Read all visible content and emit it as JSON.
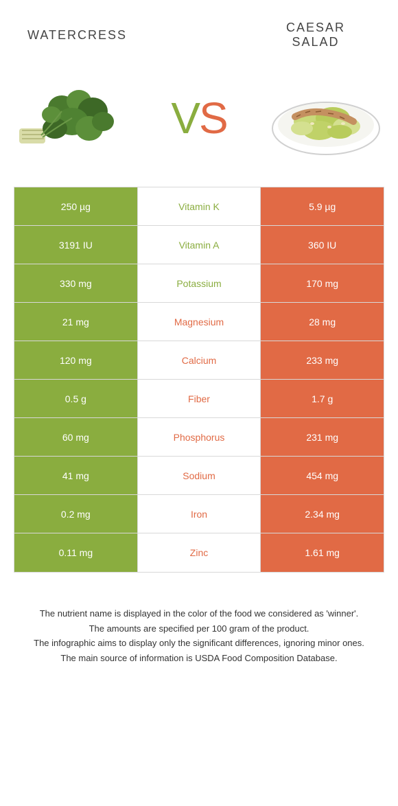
{
  "colors": {
    "green": "#8aad3f",
    "orange": "#e16a45",
    "border": "#d8d8d8",
    "bg": "#ffffff",
    "text": "#333333"
  },
  "header": {
    "left_title": "Watercress",
    "right_title": "Caesar salad",
    "vs_v": "V",
    "vs_s": "S"
  },
  "table": {
    "rows": [
      {
        "left": "250 µg",
        "nutrient": "Vitamin K",
        "right": "5.9 µg",
        "winner": "green"
      },
      {
        "left": "3191 IU",
        "nutrient": "Vitamin A",
        "right": "360 IU",
        "winner": "green"
      },
      {
        "left": "330 mg",
        "nutrient": "Potassium",
        "right": "170 mg",
        "winner": "green"
      },
      {
        "left": "21 mg",
        "nutrient": "Magnesium",
        "right": "28 mg",
        "winner": "orange"
      },
      {
        "left": "120 mg",
        "nutrient": "Calcium",
        "right": "233 mg",
        "winner": "orange"
      },
      {
        "left": "0.5 g",
        "nutrient": "Fiber",
        "right": "1.7 g",
        "winner": "orange"
      },
      {
        "left": "60 mg",
        "nutrient": "Phosphorus",
        "right": "231 mg",
        "winner": "orange"
      },
      {
        "left": "41 mg",
        "nutrient": "Sodium",
        "right": "454 mg",
        "winner": "orange"
      },
      {
        "left": "0.2 mg",
        "nutrient": "Iron",
        "right": "2.34 mg",
        "winner": "orange"
      },
      {
        "left": "0.11 mg",
        "nutrient": "Zinc",
        "right": "1.61 mg",
        "winner": "orange"
      }
    ]
  },
  "footer": {
    "line1": "The nutrient name is displayed in the color of the food we considered as 'winner'.",
    "line2": "The amounts are specified per 100 gram of the product.",
    "line3": "The infographic aims to display only the significant differences, ignoring minor ones.",
    "line4": "The main source of information is USDA Food Composition Database."
  }
}
